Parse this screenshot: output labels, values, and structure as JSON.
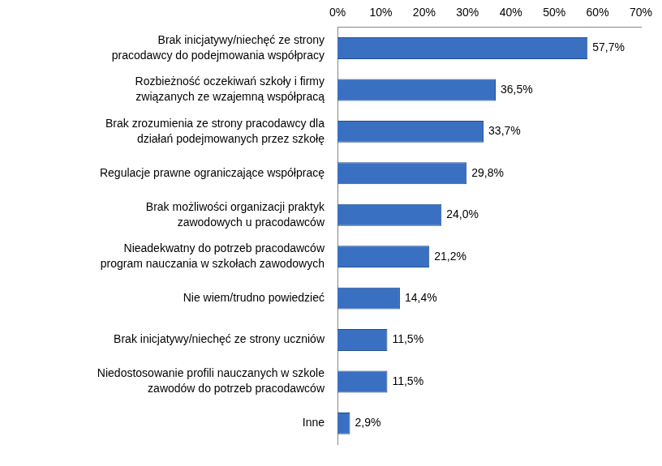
{
  "chart_data": {
    "type": "bar",
    "orientation": "horizontal",
    "categories": [
      [
        "Brak inicjatywy/niechęć ze strony",
        "pracodawcy do podejmowania współpracy"
      ],
      [
        "Rozbieżność oczekiwań szkoły i firmy",
        "związanych ze wzajemną współpracą"
      ],
      [
        "Brak zrozumienia ze strony pracodawcy dla",
        "działań podejmowanych przez szkołę"
      ],
      "Regulacje prawne ograniczające współpracę",
      [
        "Brak możliwości organizacji praktyk",
        "zawodowych u pracodawców"
      ],
      [
        "Nieadekwatny do potrzeb pracodawców",
        "program nauczania w szkołach zawodowych"
      ],
      "Nie wiem/trudno powiedzieć",
      "Brak inicjatywy/niechęć ze strony uczniów",
      [
        "Niedostosowanie profili nauczanych w szkole",
        "zawodów do potrzeb pracodawców"
      ],
      "Inne"
    ],
    "values": [
      57.7,
      36.5,
      33.7,
      29.8,
      24.0,
      21.2,
      14.4,
      11.5,
      11.5,
      2.9
    ],
    "value_labels": [
      "57,7%",
      "36,5%",
      "33,7%",
      "29,8%",
      "24,0%",
      "21,2%",
      "14,4%",
      "11,5%",
      "11,5%",
      "2,9%"
    ],
    "data_labels": true,
    "color": "#3a70c2",
    "xlim": [
      0,
      70
    ],
    "xticks": [
      {
        "value": 0,
        "label": "0%"
      },
      {
        "value": 10,
        "label": "10%"
      },
      {
        "value": 20,
        "label": "20%"
      },
      {
        "value": 30,
        "label": "30%"
      },
      {
        "value": 40,
        "label": "40%"
      },
      {
        "value": 50,
        "label": "50%"
      },
      {
        "value": 60,
        "label": "60%"
      },
      {
        "value": 70,
        "label": "70%"
      }
    ],
    "grid": false
  }
}
